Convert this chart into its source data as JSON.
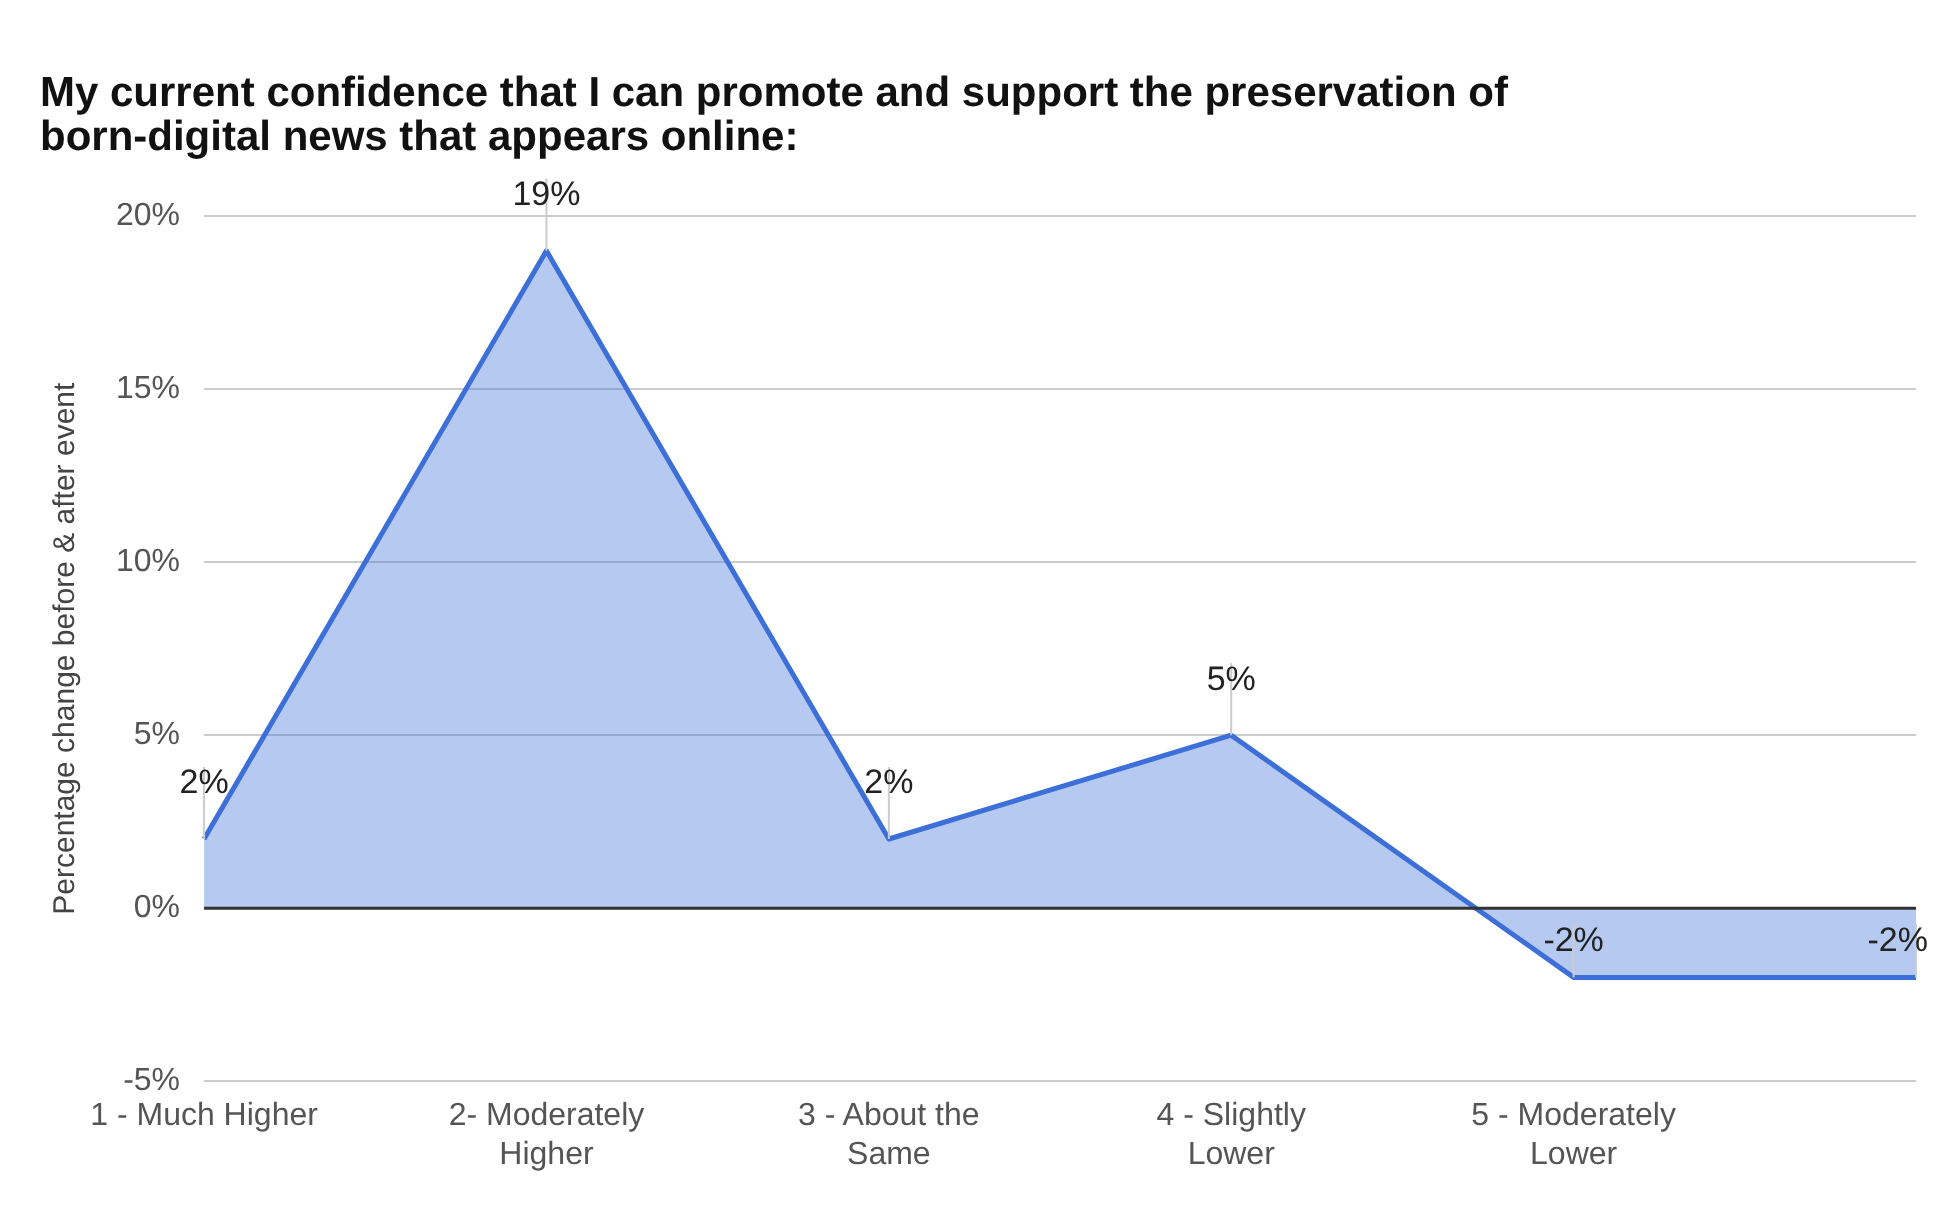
{
  "chart_data": {
    "type": "area",
    "title": "My current confidence that I can promote and support the preservation of born-digital news that appears online:",
    "ylabel": "Percentage change before & after event",
    "categories": [
      "1 - Much Higher",
      "2- Moderately Higher",
      "3 - About the Same",
      "4 - Slightly Lower",
      "5 - Moderately Lower",
      null
    ],
    "series": [
      {
        "color": "#3c6fd8",
        "values": [
          2,
          19,
          2,
          5,
          -2,
          -2
        ],
        "value_labels": [
          "2%",
          "19%",
          "2%",
          "5%",
          "-2%",
          "-2%"
        ]
      }
    ],
    "ylim": [
      -5,
      20
    ],
    "yticks": [
      {
        "value": -5,
        "label": "-5%"
      },
      {
        "value": 0,
        "label": "0%"
      },
      {
        "value": 5,
        "label": "5%"
      },
      {
        "value": 10,
        "label": "10%"
      },
      {
        "value": 15,
        "label": "15%"
      },
      {
        "value": 20,
        "label": "20%"
      }
    ],
    "grid": "y",
    "legend": false,
    "marker": "none",
    "line_style": "solid"
  }
}
